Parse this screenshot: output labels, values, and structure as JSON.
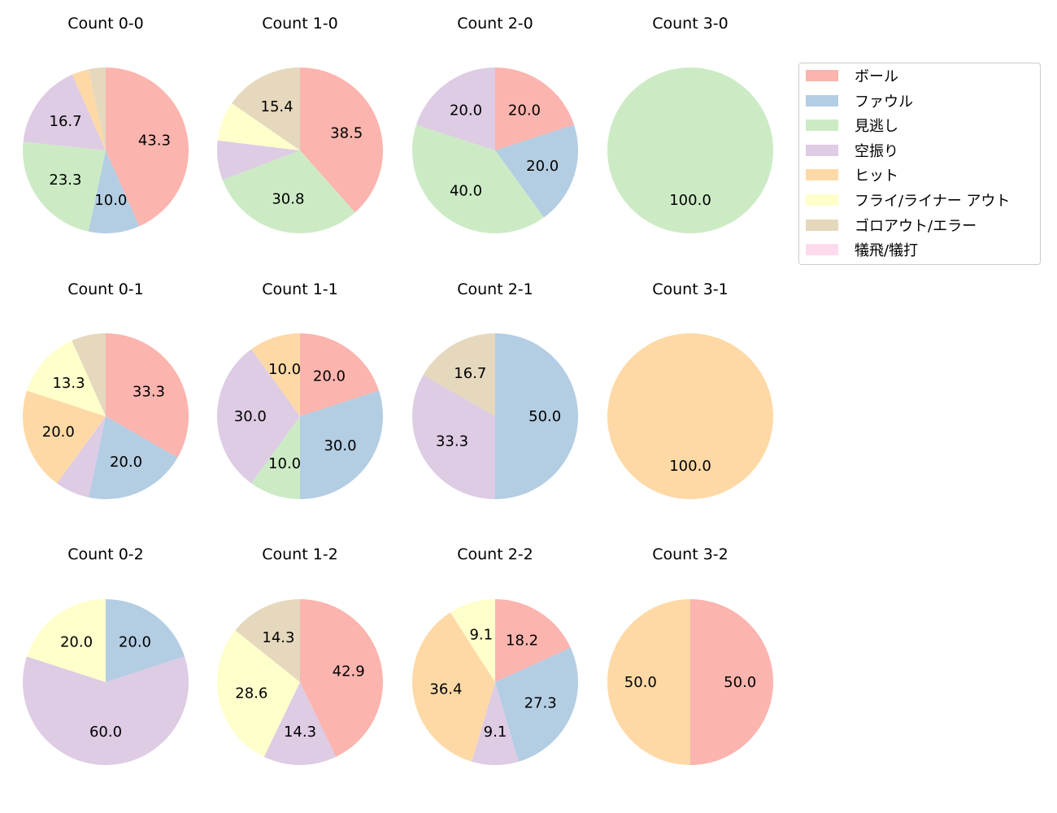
{
  "chart_data": {
    "type": "pie",
    "categories": [
      "ボール",
      "ファウル",
      "見逃し",
      "空振り",
      "ヒット",
      "フライ/ライナー アウト",
      "ゴロアウト/エラー",
      "犠飛/犠打"
    ],
    "colors": [
      "#fbb4ae",
      "#b3cde3",
      "#ccebc5",
      "#decbe4",
      "#fed9a6",
      "#ffffcc",
      "#e5d8bd",
      "#fddaec"
    ],
    "legend_position": "right",
    "charts": [
      {
        "title": "Count 0-0",
        "values": [
          43.3,
          10.0,
          23.3,
          16.7,
          3.3,
          0,
          3.3,
          0
        ]
      },
      {
        "title": "Count 1-0",
        "values": [
          38.5,
          0,
          30.8,
          7.7,
          0,
          7.7,
          15.4,
          0
        ]
      },
      {
        "title": "Count 2-0",
        "values": [
          20.0,
          20.0,
          40.0,
          20.0,
          0,
          0,
          0,
          0
        ]
      },
      {
        "title": "Count 3-0",
        "values": [
          0,
          0,
          100.0,
          0,
          0,
          0,
          0,
          0
        ]
      },
      {
        "title": "Count 0-1",
        "values": [
          33.3,
          20.0,
          0,
          6.7,
          20.0,
          13.3,
          6.7,
          0
        ]
      },
      {
        "title": "Count 1-1",
        "values": [
          20.0,
          30.0,
          10.0,
          30.0,
          10.0,
          0,
          0,
          0
        ]
      },
      {
        "title": "Count 2-1",
        "values": [
          0,
          50.0,
          0,
          33.3,
          0,
          0,
          16.7,
          0
        ]
      },
      {
        "title": "Count 3-1",
        "values": [
          0,
          0,
          0,
          0,
          100.0,
          0,
          0,
          0
        ]
      },
      {
        "title": "Count 0-2",
        "values": [
          0,
          20.0,
          0,
          60.0,
          0,
          20.0,
          0,
          0
        ]
      },
      {
        "title": "Count 1-2",
        "values": [
          42.9,
          0,
          0,
          14.3,
          0,
          28.6,
          14.3,
          0
        ]
      },
      {
        "title": "Count 2-2",
        "values": [
          18.2,
          27.3,
          0,
          9.1,
          36.4,
          9.1,
          0,
          0
        ]
      },
      {
        "title": "Count 3-2",
        "values": [
          50.0,
          0,
          0,
          0,
          50.0,
          0,
          0,
          0
        ]
      }
    ]
  }
}
